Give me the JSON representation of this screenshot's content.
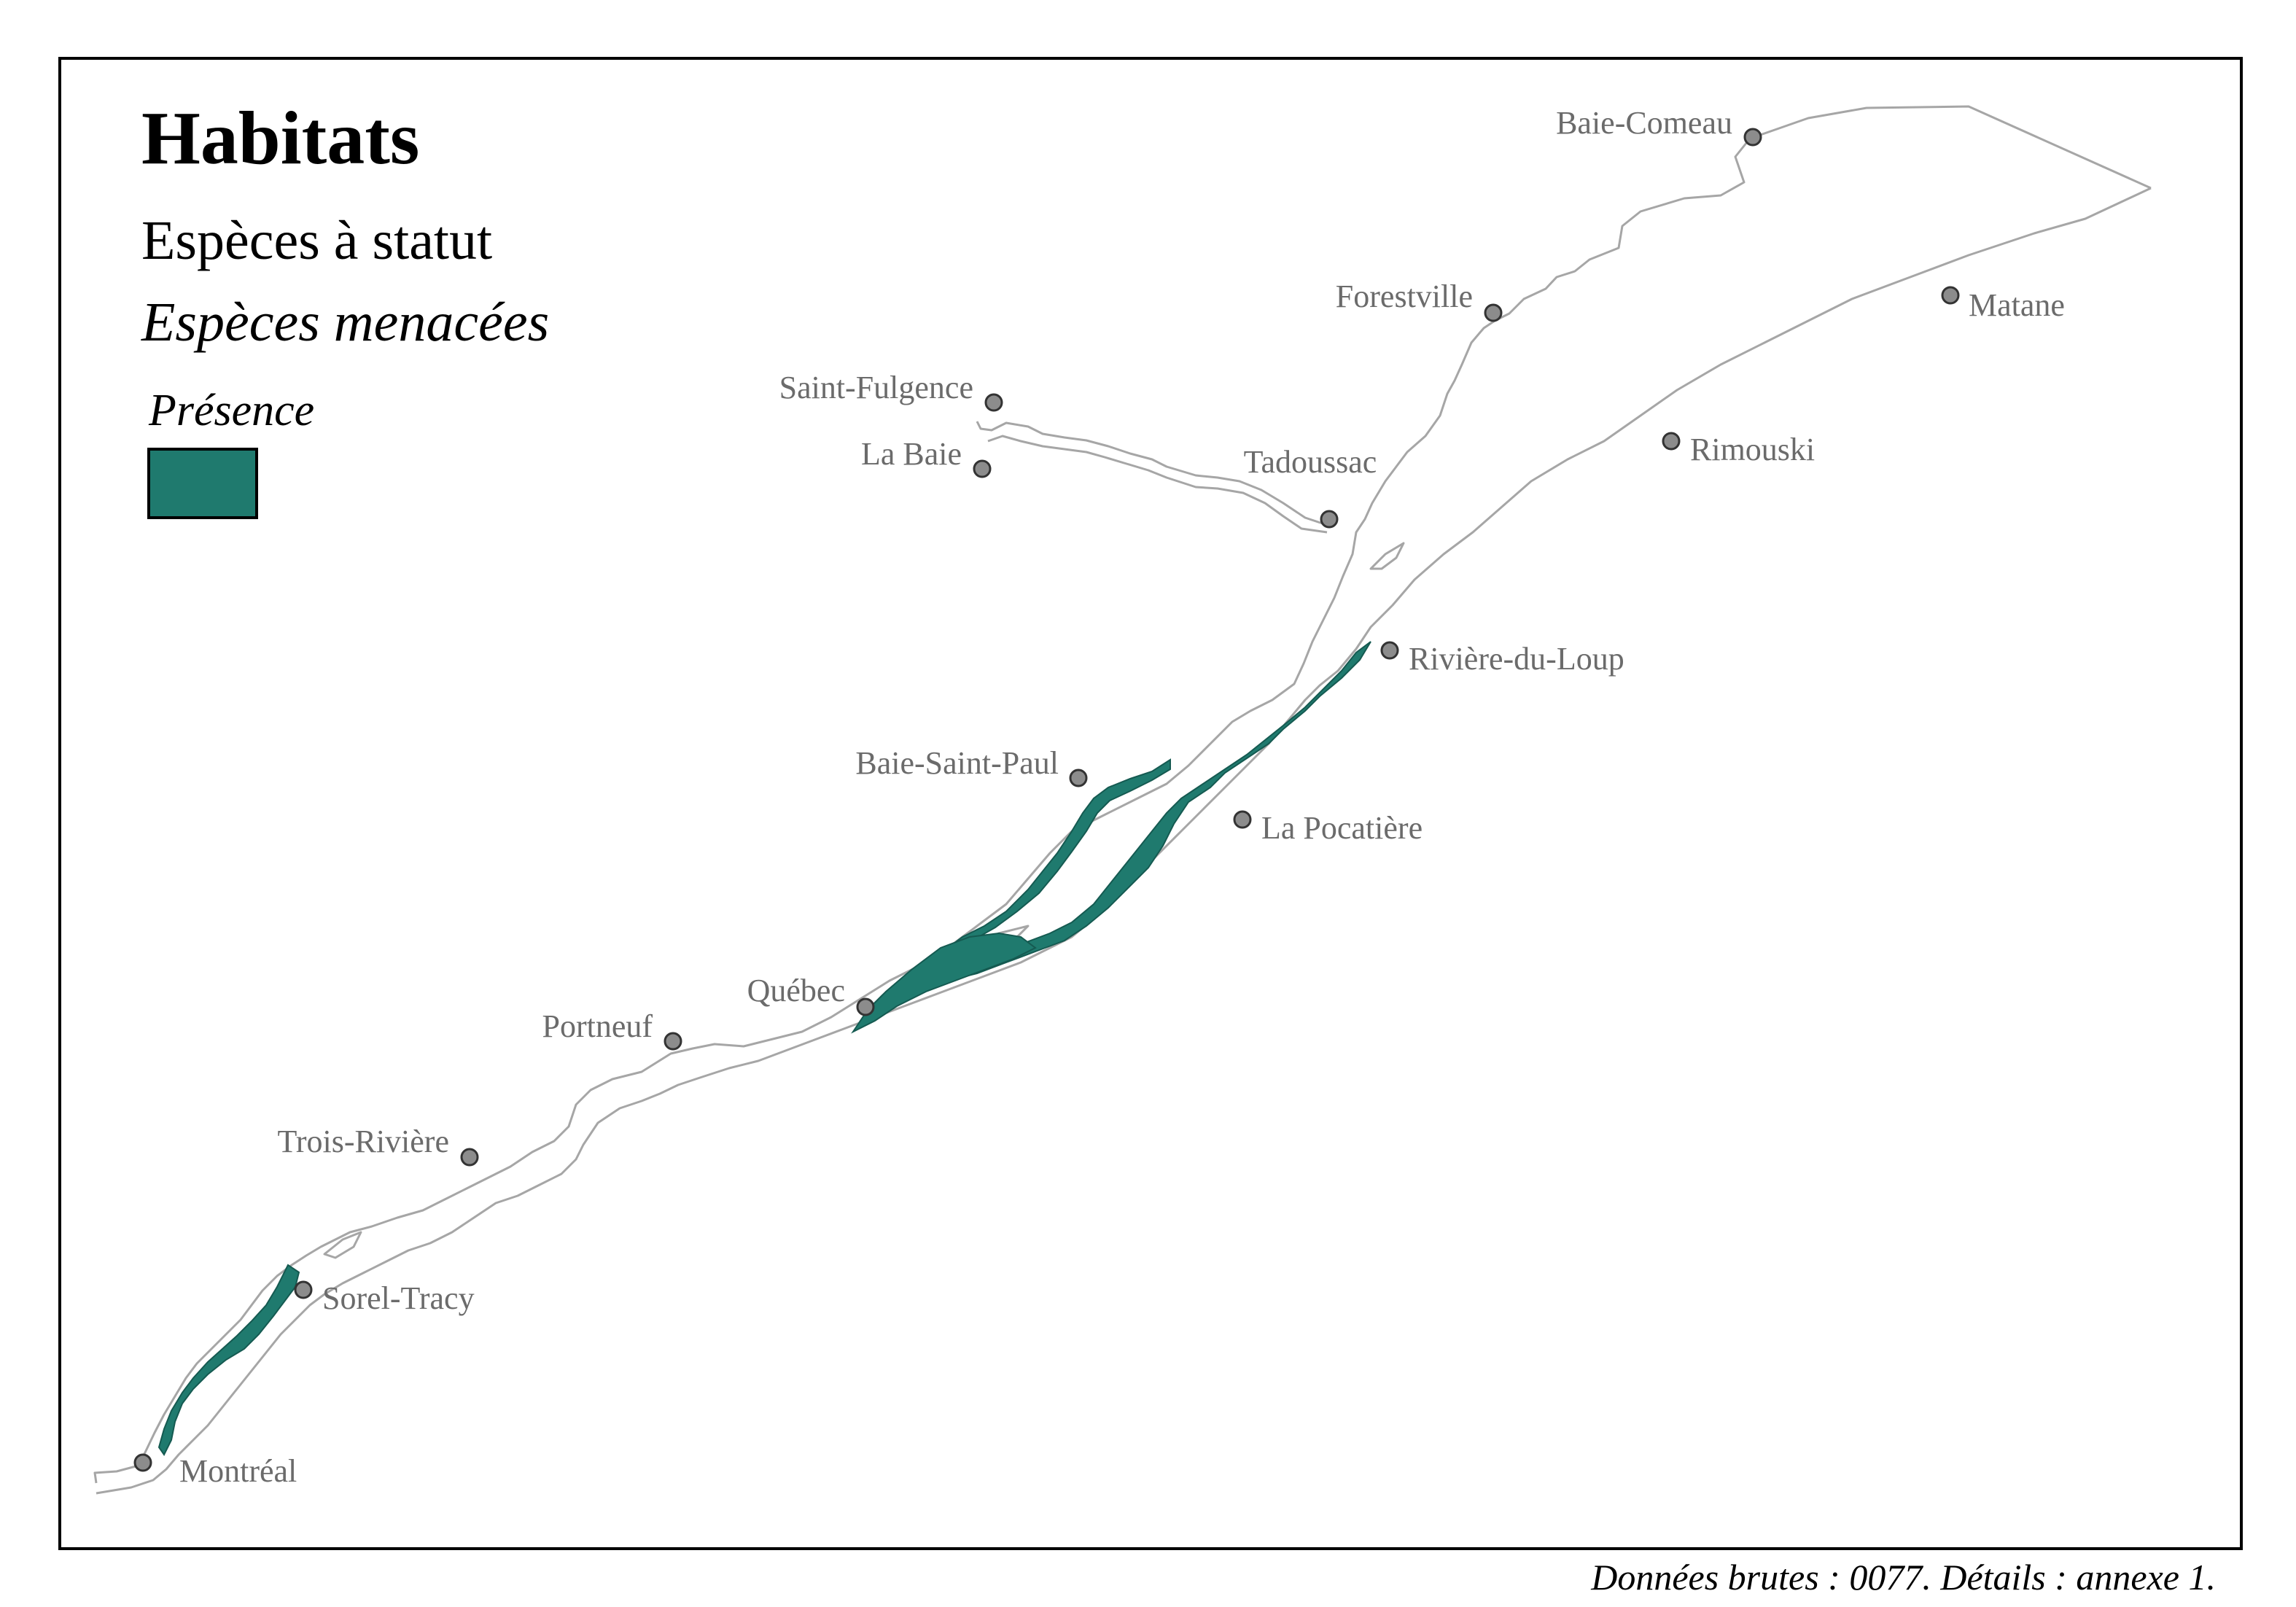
{
  "legend": {
    "title": "Habitats",
    "subtitle": "Espèces à statut",
    "category": "Espèces menacées",
    "key_title": "Présence",
    "presence_color": "#1f7a6e"
  },
  "source_note": "Données brutes : 0077. Détails : annexe 1.",
  "colors": {
    "shoreline": "#a6a6a6",
    "city_dot_fill": "#8c8c8c",
    "city_dot_stroke": "#333333",
    "label": "#6b6b6b"
  },
  "cities": [
    {
      "id": "baie-comeau",
      "name": "Baie-Comeau"
    },
    {
      "id": "forestville",
      "name": "Forestville"
    },
    {
      "id": "matane",
      "name": "Matane"
    },
    {
      "id": "saint-fulgence",
      "name": "Saint-Fulgence"
    },
    {
      "id": "la-baie",
      "name": "La Baie"
    },
    {
      "id": "tadoussac",
      "name": "Tadoussac"
    },
    {
      "id": "rimouski",
      "name": "Rimouski"
    },
    {
      "id": "riviere-du-loup",
      "name": "Rivière-du-Loup"
    },
    {
      "id": "baie-saint-paul",
      "name": "Baie-Saint-Paul"
    },
    {
      "id": "la-pocatiere",
      "name": "La Pocatière"
    },
    {
      "id": "quebec",
      "name": "Québec"
    },
    {
      "id": "portneuf",
      "name": "Portneuf"
    },
    {
      "id": "trois-riviere",
      "name": "Trois-Rivière"
    },
    {
      "id": "sorel-tracy",
      "name": "Sorel-Tracy"
    },
    {
      "id": "montreal",
      "name": "Montréal"
    }
  ]
}
